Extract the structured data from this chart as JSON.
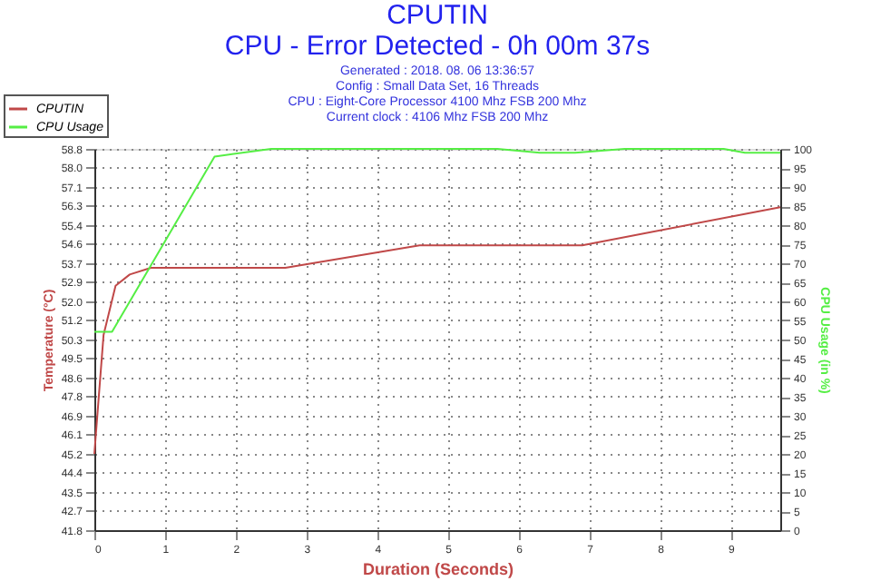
{
  "chart_data": {
    "type": "line",
    "title": "CPUTIN",
    "subtitle": "CPU - Error Detected - 0h 00m 37s",
    "annotations": [
      "Generated : 2018. 08. 06 13:36:57",
      "Config : Small Data Set, 16 Threads",
      "CPU : Eight-Core Processor 4100 Mhz FSB 200 Mhz",
      "Current clock : 4106 Mhz FSB 200 Mhz"
    ],
    "xlabel": "Duration (Seconds)",
    "ylabel": "Temperature (°C)",
    "y2label": "CPU Usage (in %)",
    "xlim": [
      0,
      9.7
    ],
    "xticks": [
      0,
      1,
      2,
      3,
      4,
      5,
      6,
      7,
      8,
      9
    ],
    "ylim": [
      41.8,
      58.8
    ],
    "yticks": [
      41.8,
      42.7,
      43.5,
      44.4,
      45.2,
      46.1,
      46.9,
      47.8,
      48.6,
      49.5,
      50.3,
      51.2,
      {
        "value": 52,
        "label": "52.0"
      },
      52.9,
      53.7,
      54.6,
      55.4,
      56.3,
      57.1,
      {
        "value": 58,
        "label": "58.0"
      },
      58.8
    ],
    "y2lim": [
      0,
      100
    ],
    "y2ticks": [
      0,
      5,
      10,
      15,
      20,
      25,
      30,
      35,
      40,
      45,
      50,
      55,
      60,
      65,
      70,
      75,
      80,
      85,
      90,
      95,
      100
    ],
    "grid": true,
    "legend": "top left",
    "series": [
      {
        "name": "CPUTIN",
        "color": "#c04848",
        "x": [
          0,
          0.13,
          0.3,
          0.5,
          0.8,
          1.2,
          2.7,
          4.6,
          6.9,
          9.7
        ],
        "values": [
          45.2,
          50.5,
          52.7,
          53.2,
          53.5,
          53.5,
          53.5,
          54.5,
          54.5,
          56.2
        ]
      },
      {
        "name": "CPU Usage",
        "color": "#55ee44",
        "axis": "y2",
        "x": [
          0,
          0.25,
          1.7,
          2.5,
          5.7,
          6.3,
          6.8,
          7.5,
          8.9,
          9.2,
          9.7
        ],
        "values": [
          52,
          52,
          98,
          100,
          100,
          99,
          99,
          100,
          100,
          99,
          99
        ]
      }
    ]
  }
}
